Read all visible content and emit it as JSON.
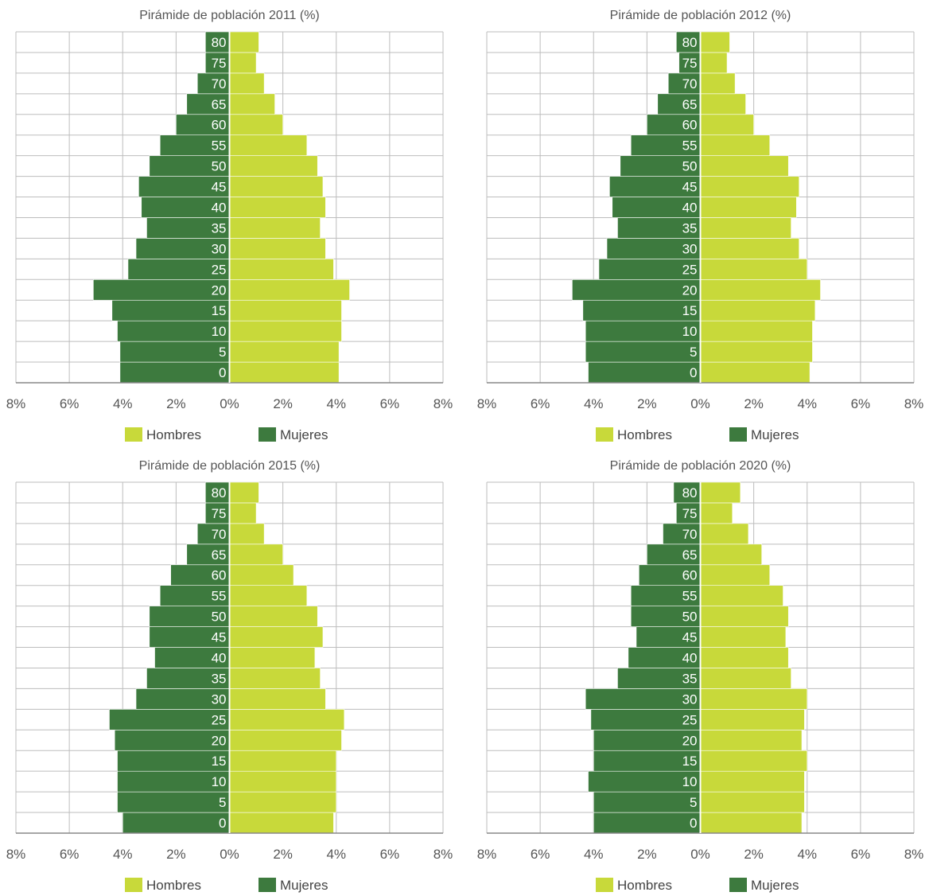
{
  "colors": {
    "hombres": "#c8d93a",
    "mujeres": "#3d7a3e",
    "grid": "#bdbdbd",
    "text": "#555555"
  },
  "legend": {
    "hombres_label": "Hombres",
    "mujeres_label": "Mujeres"
  },
  "chart_data": [
    {
      "type": "bar",
      "orientation": "horizontal-pyramid",
      "title": "Pirámide de población 2011 (%)",
      "categories": [
        "0",
        "5",
        "10",
        "15",
        "20",
        "25",
        "30",
        "35",
        "40",
        "45",
        "50",
        "55",
        "60",
        "65",
        "70",
        "75",
        "80"
      ],
      "xticks": [
        "8%",
        "6%",
        "4%",
        "2%",
        "0%",
        "2%",
        "4%",
        "6%",
        "8%"
      ],
      "xlim": [
        -8,
        8
      ],
      "legend_position": "bottom",
      "series": [
        {
          "name": "Hombres",
          "side": "right",
          "values": [
            4.1,
            4.1,
            4.2,
            4.2,
            4.5,
            3.9,
            3.6,
            3.4,
            3.6,
            3.5,
            3.3,
            2.9,
            2.0,
            1.7,
            1.3,
            1.0,
            1.1
          ]
        },
        {
          "name": "Mujeres",
          "side": "left",
          "values": [
            4.1,
            4.1,
            4.2,
            4.4,
            5.1,
            3.8,
            3.5,
            3.1,
            3.3,
            3.4,
            3.0,
            2.6,
            2.0,
            1.6,
            1.2,
            0.9,
            0.9
          ]
        }
      ]
    },
    {
      "type": "bar",
      "orientation": "horizontal-pyramid",
      "title": "Pirámide de población 2012 (%)",
      "categories": [
        "0",
        "5",
        "10",
        "15",
        "20",
        "25",
        "30",
        "35",
        "40",
        "45",
        "50",
        "55",
        "60",
        "65",
        "70",
        "75",
        "80"
      ],
      "xticks": [
        "8%",
        "6%",
        "4%",
        "2%",
        "0%",
        "2%",
        "4%",
        "6%",
        "8%"
      ],
      "xlim": [
        -8,
        8
      ],
      "legend_position": "bottom",
      "series": [
        {
          "name": "Hombres",
          "side": "right",
          "values": [
            4.1,
            4.2,
            4.2,
            4.3,
            4.5,
            4.0,
            3.7,
            3.4,
            3.6,
            3.7,
            3.3,
            2.6,
            2.0,
            1.7,
            1.3,
            1.0,
            1.1
          ]
        },
        {
          "name": "Mujeres",
          "side": "left",
          "values": [
            4.2,
            4.3,
            4.3,
            4.4,
            4.8,
            3.8,
            3.5,
            3.1,
            3.3,
            3.4,
            3.0,
            2.6,
            2.0,
            1.6,
            1.2,
            0.8,
            0.9
          ]
        }
      ]
    },
    {
      "type": "bar",
      "orientation": "horizontal-pyramid",
      "title": "Pirámide de población 2015 (%)",
      "categories": [
        "0",
        "5",
        "10",
        "15",
        "20",
        "25",
        "30",
        "35",
        "40",
        "45",
        "50",
        "55",
        "60",
        "65",
        "70",
        "75",
        "80"
      ],
      "xticks": [
        "8%",
        "6%",
        "4%",
        "2%",
        "0%",
        "2%",
        "4%",
        "6%",
        "8%"
      ],
      "xlim": [
        -8,
        8
      ],
      "legend_position": "bottom",
      "series": [
        {
          "name": "Hombres",
          "side": "right",
          "values": [
            3.9,
            4.0,
            4.0,
            4.0,
            4.2,
            4.3,
            3.6,
            3.4,
            3.2,
            3.5,
            3.3,
            2.9,
            2.4,
            2.0,
            1.3,
            1.0,
            1.1
          ]
        },
        {
          "name": "Mujeres",
          "side": "left",
          "values": [
            4.0,
            4.2,
            4.2,
            4.2,
            4.3,
            4.5,
            3.5,
            3.1,
            2.8,
            3.0,
            3.0,
            2.6,
            2.2,
            1.6,
            1.2,
            0.9,
            0.9
          ]
        }
      ]
    },
    {
      "type": "bar",
      "orientation": "horizontal-pyramid",
      "title": "Pirámide de población 2020 (%)",
      "categories": [
        "0",
        "5",
        "10",
        "15",
        "20",
        "25",
        "30",
        "35",
        "40",
        "45",
        "50",
        "55",
        "60",
        "65",
        "70",
        "75",
        "80"
      ],
      "xticks": [
        "8%",
        "6%",
        "4%",
        "2%",
        "0%",
        "2%",
        "4%",
        "6%",
        "8%"
      ],
      "xlim": [
        -8,
        8
      ],
      "legend_position": "bottom",
      "series": [
        {
          "name": "Hombres",
          "side": "right",
          "values": [
            3.8,
            3.9,
            3.9,
            4.0,
            3.8,
            3.9,
            4.0,
            3.4,
            3.3,
            3.2,
            3.3,
            3.1,
            2.6,
            2.3,
            1.8,
            1.2,
            1.5
          ]
        },
        {
          "name": "Mujeres",
          "side": "left",
          "values": [
            4.0,
            4.0,
            4.2,
            4.0,
            4.0,
            4.1,
            4.3,
            3.1,
            2.7,
            2.4,
            2.6,
            2.6,
            2.3,
            2.0,
            1.4,
            0.9,
            1.0
          ]
        }
      ]
    }
  ]
}
